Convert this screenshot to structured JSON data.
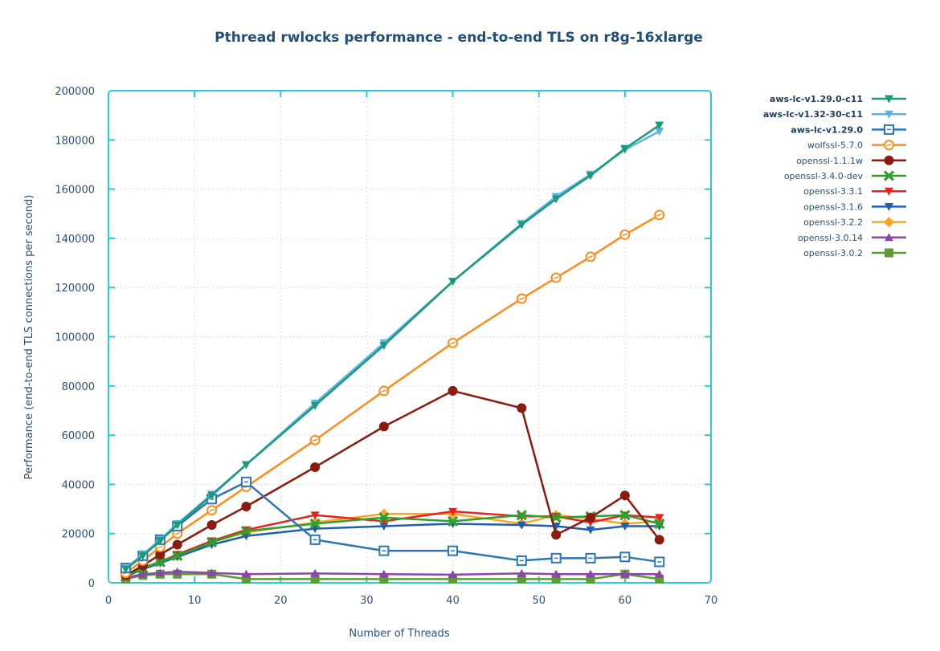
{
  "chart_data": {
    "type": "line",
    "title": "Pthread rwlocks performance - end-to-end TLS on r8g-16xlarge",
    "xlabel": "Number of Threads",
    "ylabel": "Performance (end-to-end TLS connections per second)",
    "xlim": [
      0,
      70
    ],
    "ylim": [
      0,
      200000
    ],
    "xticks": [
      0,
      10,
      20,
      30,
      40,
      50,
      60,
      70
    ],
    "yticks": [
      0,
      20000,
      40000,
      60000,
      80000,
      100000,
      120000,
      140000,
      160000,
      180000,
      200000
    ],
    "grid": true,
    "legend_position": "right",
    "x": [
      2,
      4,
      6,
      8,
      12,
      16,
      24,
      32,
      40,
      48,
      52,
      56,
      60,
      64
    ],
    "series": [
      {
        "name": "aws-lc-v1.29.0-c11",
        "bold": true,
        "color": "#1a9a78",
        "marker": "triangle-down",
        "values": [
          5500,
          11000,
          17000,
          23500,
          35500,
          48000,
          72000,
          96500,
          122500,
          145500,
          156000,
          165500,
          176500,
          186000
        ]
      },
      {
        "name": "aws-lc-v1.32-30-c11",
        "bold": true,
        "color": "#5ab4e5",
        "marker": "triangle-down",
        "values": [
          6000,
          11500,
          17500,
          24000,
          36000,
          48000,
          73000,
          97500,
          122500,
          146000,
          157000,
          166000,
          176000,
          183500
        ]
      },
      {
        "name": "aws-lc-v1.29.0",
        "bold": true,
        "color": "#2e75b6",
        "marker": "square-open",
        "values": [
          6000,
          11000,
          17500,
          23000,
          34000,
          41000,
          17500,
          13000,
          13000,
          9000,
          10000,
          10000,
          10500,
          8500
        ]
      },
      {
        "name": "wolfssl-5.7.0",
        "bold": false,
        "color": "#ff8c1a",
        "marker": "circle-open",
        "values": [
          4000,
          9000,
          14500,
          20000,
          29500,
          39000,
          58000,
          78000,
          97500,
          115500,
          124000,
          132500,
          141500,
          149500
        ]
      },
      {
        "name": "openssl-1.1.1w",
        "bold": false,
        "color": "#8b1a10",
        "marker": "circle",
        "values": [
          3000,
          7000,
          11500,
          15500,
          23500,
          31000,
          47000,
          63500,
          78000,
          71000,
          19500,
          26500,
          35500,
          17500
        ]
      },
      {
        "name": "openssl-3.4.0-dev",
        "bold": false,
        "color": "#2ea02c",
        "marker": "x",
        "values": [
          2500,
          6000,
          8500,
          11000,
          16500,
          21000,
          24000,
          26500,
          25000,
          27500,
          26500,
          27000,
          27500,
          24000
        ]
      },
      {
        "name": "openssl-3.3.1",
        "bold": false,
        "color": "#e8231f",
        "marker": "triangle-down",
        "values": [
          2500,
          6000,
          8500,
          11500,
          17000,
          21500,
          27500,
          25000,
          29000,
          27000,
          27000,
          24500,
          27500,
          26500
        ]
      },
      {
        "name": "openssl-3.1.6",
        "bold": false,
        "color": "#1f5fb0",
        "marker": "triangle-down",
        "values": [
          2500,
          5500,
          8000,
          10500,
          15500,
          19000,
          22000,
          23000,
          24000,
          23500,
          23000,
          21500,
          23000,
          23000
        ]
      },
      {
        "name": "openssl-3.2.2",
        "bold": false,
        "color": "#ffa41f",
        "marker": "diamond",
        "values": [
          2500,
          6000,
          8500,
          11000,
          16500,
          20500,
          24500,
          28000,
          28000,
          24000,
          27500,
          26000,
          24000,
          25000
        ]
      },
      {
        "name": "openssl-3.0.14",
        "bold": false,
        "color": "#8e44ad",
        "marker": "triangle-up",
        "values": [
          2000,
          3500,
          4000,
          4500,
          4000,
          3500,
          3800,
          3500,
          3300,
          3800,
          3500,
          3500,
          3500,
          3500
        ]
      },
      {
        "name": "openssl-3.0.2",
        "bold": false,
        "color": "#5a9e32",
        "marker": "square",
        "values": [
          1500,
          3000,
          3500,
          3500,
          3500,
          1500,
          1500,
          1500,
          1500,
          1500,
          1500,
          1500,
          3500,
          1500
        ]
      }
    ]
  }
}
